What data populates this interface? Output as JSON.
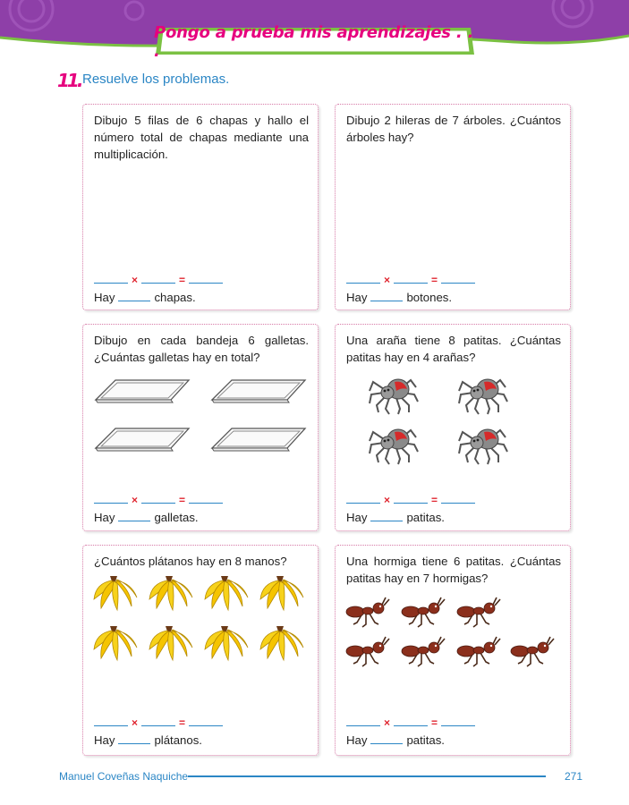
{
  "header": {
    "title": "Pongo a prueba mis aprendizajes . . ."
  },
  "exercise": {
    "number": "11.",
    "instruction": "Resuelve los problemas."
  },
  "problems": [
    {
      "question": "Dibujo 5 filas de 6 chapas y hallo el número total de chapas mediante una multiplicación.",
      "answer_prefix": "Hay",
      "answer_unit": "chapas."
    },
    {
      "question": "Dibujo 2 hileras de 7 árboles. ¿Cuántos árboles hay?",
      "answer_prefix": "Hay",
      "answer_unit": "botones."
    },
    {
      "question": "Dibujo en cada bandeja 6 galletas. ¿Cuántas galletas hay en total?",
      "answer_prefix": "Hay",
      "answer_unit": "galletas."
    },
    {
      "question": "Una araña tiene 8 patitas. ¿Cuántas patitas hay en 4 arañas?",
      "answer_prefix": "Hay",
      "answer_unit": "patitas."
    },
    {
      "question": "¿Cuántos plátanos hay en 8 manos?",
      "answer_prefix": "Hay",
      "answer_unit": "plátanos."
    },
    {
      "question": "Una hormiga tiene 6 patitas. ¿Cuántas patitas hay en 7 hormigas?",
      "answer_prefix": "Hay",
      "answer_unit": "patitas."
    }
  ],
  "symbols": {
    "times": "×",
    "equals": "="
  },
  "illustrations": {
    "trays": 4,
    "spiders": 4,
    "banana_bunches": 8,
    "ants": 7
  },
  "colors": {
    "accent_pink": "#e6007e",
    "blue": "#2b86c5",
    "purple": "#8e3fa8",
    "green": "#7bc143"
  },
  "footer": {
    "author": "Manuel Coveñas Naquiche",
    "page": "271"
  }
}
